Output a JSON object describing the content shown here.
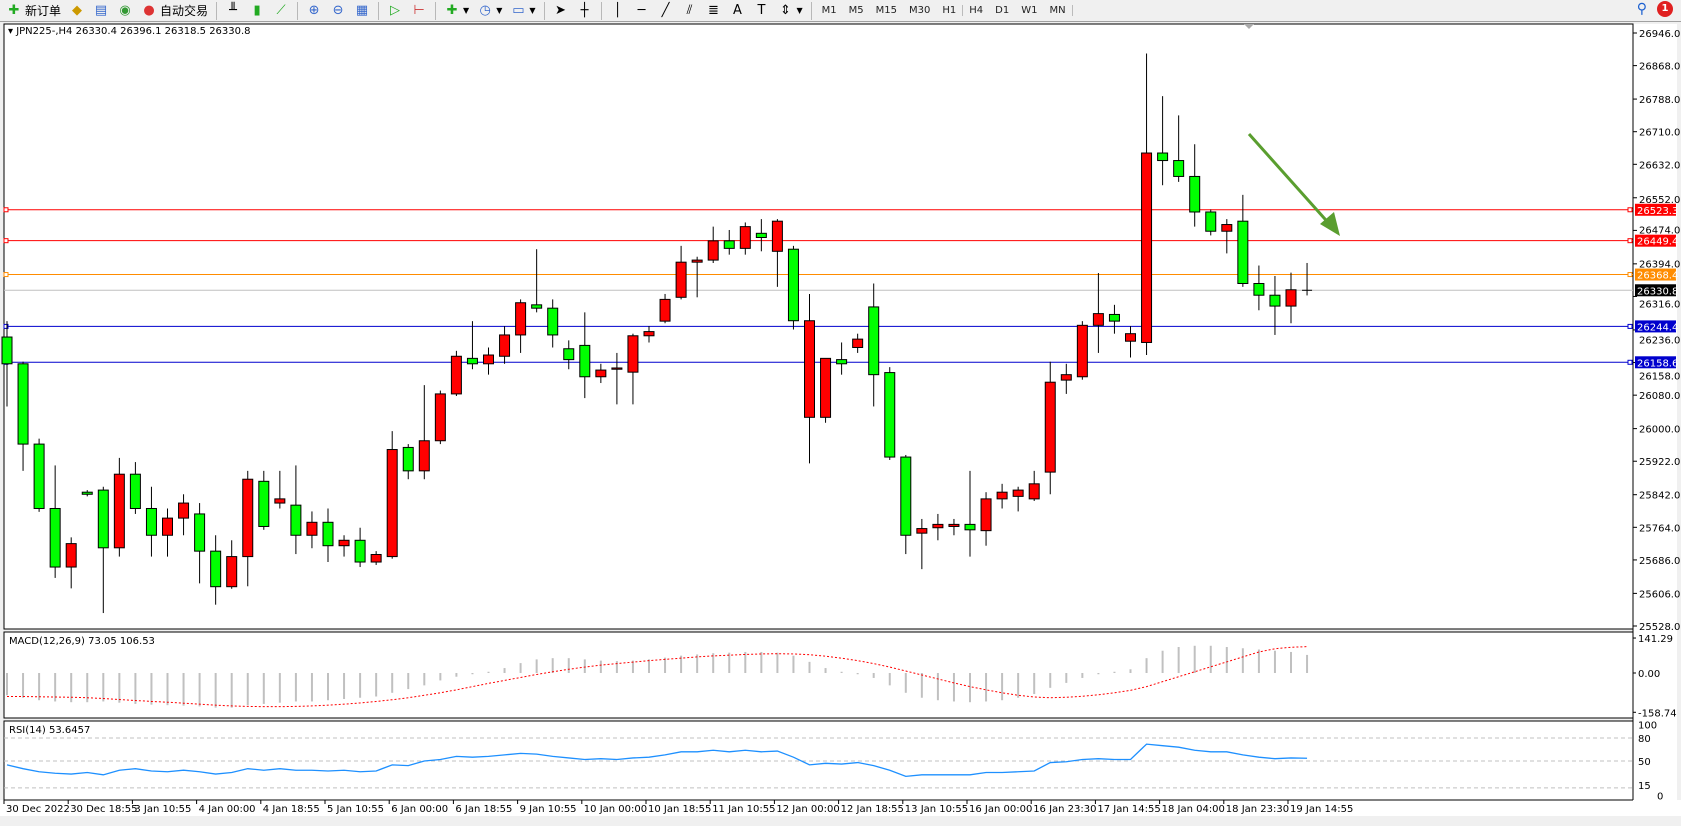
{
  "toolbar": {
    "new_order": "新订单",
    "auto_trading": "自动交易",
    "timeframes": [
      "M1",
      "M5",
      "M15",
      "M30",
      "H1",
      "H4",
      "D1",
      "W1",
      "MN"
    ],
    "icons": [
      "new-order-icon",
      "market-watch-icon",
      "navigator-icon",
      "signals-icon",
      "auto-trading-icon",
      "bar-chart-icon",
      "candlestick-icon",
      "line-chart-icon",
      "zoom-in-icon",
      "zoom-out-icon",
      "tile-windows-icon",
      "auto-scroll-icon",
      "chart-shift-icon",
      "indicators-icon",
      "periods-icon",
      "templates-icon",
      "cursor-icon",
      "crosshair-icon",
      "vertical-line-icon",
      "horizontal-line-icon",
      "trendline-icon",
      "equidistant-channel-icon",
      "fibonacci-icon",
      "text-icon",
      "text-label-icon",
      "arrows-icon"
    ],
    "notification_count": "1"
  },
  "chart": {
    "title": "JPN225-,H4  26330.4 26396.1 26318.5 26330.8",
    "colors": {
      "bull": "#ff0000",
      "bear": "#00ff00",
      "arrow": "#5a9e2f",
      "macd_hist": "#c0c0c0",
      "macd_signal": "#ff0000",
      "rsi": "#1e90ff"
    },
    "price_ticks": [
      "26946.0",
      "26868.0",
      "26788.0",
      "26710.0",
      "26632.0",
      "26552.0",
      "26474.0",
      "26394.0",
      "26316.0",
      "26236.0",
      "26158.0",
      "26080.0",
      "26000.0",
      "25922.0",
      "25842.0",
      "25764.0",
      "25686.0",
      "25606.0",
      "25528.0"
    ],
    "levels": [
      {
        "price": "26523.3",
        "color": "#ff0000"
      },
      {
        "price": "26449.4",
        "color": "#ff0000"
      },
      {
        "price": "26368.4",
        "color": "#ff8c00"
      },
      {
        "price": "26330.8",
        "color": "#c0c0c0",
        "label_bg": "#000000"
      },
      {
        "price": "26244.4",
        "color": "#0000cd"
      },
      {
        "price": "26158.6",
        "color": "#0000cd"
      }
    ],
    "time_labels": [
      "30 Dec 2022",
      "30 Dec 18:55",
      "3 Jan 10:55",
      "4 Jan 00:00",
      "4 Jan 18:55",
      "5 Jan 10:55",
      "6 Jan 00:00",
      "6 Jan 18:55",
      "9 Jan 10:55",
      "10 Jan 00:00",
      "10 Jan 18:55",
      "11 Jan 10:55",
      "12 Jan 00:00",
      "12 Jan 18:55",
      "13 Jan 10:55",
      "16 Jan 00:00",
      "16 Jan 23:30",
      "17 Jan 14:55",
      "18 Jan 04:00",
      "18 Jan 23:30",
      "19 Jan 14:55"
    ],
    "ohlc": [
      [
        26219,
        26257,
        26053,
        26155
      ],
      [
        26155,
        26160,
        25899,
        25963
      ],
      [
        25963,
        25976,
        25801,
        25809
      ],
      [
        25809,
        25912,
        25643,
        25669
      ],
      [
        25669,
        25740,
        25618,
        25725
      ],
      [
        25848,
        25853,
        25838,
        25843
      ],
      [
        25853,
        25861,
        25559,
        25715
      ],
      [
        25715,
        25930,
        25694,
        25891
      ],
      [
        25891,
        25920,
        25796,
        25809
      ],
      [
        25809,
        25861,
        25694,
        25745
      ],
      [
        25745,
        25809,
        25694,
        25786
      ],
      [
        25786,
        25843,
        25745,
        25822
      ],
      [
        25796,
        25822,
        25630,
        25707
      ],
      [
        25707,
        25745,
        25579,
        25622
      ],
      [
        25622,
        25733,
        25617,
        25694
      ],
      [
        25694,
        25899,
        25623,
        25879
      ],
      [
        25874,
        25899,
        25758,
        25766
      ],
      [
        25822,
        25899,
        25809,
        25832
      ],
      [
        25817,
        25912,
        25700,
        25745
      ],
      [
        25745,
        25802,
        25714,
        25776
      ],
      [
        25776,
        25809,
        25681,
        25720
      ],
      [
        25720,
        25745,
        25694,
        25733
      ],
      [
        25733,
        25763,
        25669,
        25681
      ],
      [
        25681,
        25707,
        25674,
        25699
      ],
      [
        25694,
        25994,
        25689,
        25950
      ],
      [
        25955,
        25963,
        25879,
        25899
      ],
      [
        25899,
        26104,
        25879,
        25971
      ],
      [
        25971,
        26091,
        25963,
        26083
      ],
      [
        26083,
        26186,
        26078,
        26173
      ],
      [
        26168,
        26257,
        26142,
        26155
      ],
      [
        26155,
        26194,
        26129,
        26176
      ],
      [
        26173,
        26245,
        26155,
        26224
      ],
      [
        26224,
        26309,
        26181,
        26301
      ],
      [
        26296,
        26429,
        26278,
        26288
      ],
      [
        26288,
        26309,
        26194,
        26224
      ],
      [
        26191,
        26211,
        26142,
        26165
      ],
      [
        26199,
        26278,
        26073,
        26124
      ],
      [
        26124,
        26155,
        26109,
        26140
      ],
      [
        26142,
        26181,
        26058,
        26145
      ],
      [
        26135,
        26227,
        26058,
        26222
      ],
      [
        26222,
        26245,
        26206,
        26232
      ],
      [
        26257,
        26322,
        26252,
        26309
      ],
      [
        26314,
        26437,
        26309,
        26398
      ],
      [
        26398,
        26411,
        26314,
        26403
      ],
      [
        26403,
        26483,
        26396,
        26449
      ],
      [
        26449,
        26475,
        26416,
        26431
      ],
      [
        26431,
        26493,
        26416,
        26483
      ],
      [
        26467,
        26501,
        26424,
        26457
      ],
      [
        26424,
        26501,
        26339,
        26496
      ],
      [
        26429,
        26437,
        26237,
        26258
      ],
      [
        26027,
        26322,
        25917,
        26258
      ],
      [
        26027,
        26168,
        26014,
        26168
      ],
      [
        26165,
        26206,
        26129,
        26155
      ],
      [
        26194,
        26227,
        26181,
        26214
      ],
      [
        26291,
        26347,
        26053,
        26129
      ],
      [
        26134,
        26147,
        25925,
        25932
      ],
      [
        25932,
        25937,
        25700,
        25745
      ],
      [
        25750,
        25784,
        25664,
        25761
      ],
      [
        25763,
        25796,
        25733,
        25771
      ],
      [
        25766,
        25784,
        25745,
        25771
      ],
      [
        25771,
        25899,
        25694,
        25758
      ],
      [
        25756,
        25848,
        25720,
        25832
      ],
      [
        25832,
        25868,
        25809,
        25848
      ],
      [
        25838,
        25861,
        25802,
        25853
      ],
      [
        25832,
        25899,
        25827,
        25868
      ],
      [
        25896,
        26160,
        25843,
        26111
      ],
      [
        26116,
        26155,
        26083,
        26129
      ],
      [
        26124,
        26257,
        26117,
        26247
      ],
      [
        26247,
        26372,
        26181,
        26275
      ],
      [
        26273,
        26296,
        26227,
        26257
      ],
      [
        26209,
        26245,
        26170,
        26227
      ],
      [
        26206,
        26897,
        26176,
        26659
      ],
      [
        26659,
        26795,
        26582,
        26641
      ],
      [
        26641,
        26749,
        26590,
        26603
      ],
      [
        26603,
        26680,
        26483,
        26518
      ],
      [
        26518,
        26524,
        26462,
        26472
      ],
      [
        26472,
        26501,
        26419,
        26488
      ],
      [
        26496,
        26559,
        26339,
        26347
      ],
      [
        26347,
        26390,
        26283,
        26319
      ],
      [
        26319,
        26365,
        26224,
        26293
      ],
      [
        26293,
        26373,
        26252,
        26332
      ],
      [
        26330.4,
        26396.1,
        26318.5,
        26330.8
      ]
    ]
  },
  "macd": {
    "label": "MACD(12,26,9) 73.05 106.53",
    "ticks": [
      "141.29",
      "0.00",
      "-158.74"
    ],
    "histogram": [
      -90,
      -100,
      -110,
      -115,
      -118,
      -118,
      -115,
      -120,
      -125,
      -128,
      -130,
      -132,
      -135,
      -140,
      -140,
      -130,
      -125,
      -120,
      -115,
      -115,
      -110,
      -105,
      -100,
      -95,
      -80,
      -65,
      -50,
      -30,
      -15,
      -5,
      5,
      20,
      40,
      55,
      60,
      60,
      55,
      50,
      48,
      50,
      55,
      62,
      70,
      75,
      80,
      82,
      85,
      85,
      82,
      70,
      45,
      20,
      5,
      -5,
      -20,
      -50,
      -80,
      -100,
      -110,
      -115,
      -118,
      -115,
      -110,
      -100,
      -85,
      -60,
      -40,
      -20,
      -5,
      5,
      15,
      60,
      90,
      105,
      110,
      110,
      105,
      100,
      95,
      90,
      85,
      73.05
    ],
    "signal": [
      -95,
      -95,
      -96,
      -97,
      -98,
      -100,
      -103,
      -107,
      -111,
      -115,
      -118,
      -122,
      -126,
      -130,
      -133,
      -135,
      -136,
      -136,
      -135,
      -133,
      -130,
      -126,
      -121,
      -115,
      -108,
      -100,
      -90,
      -80,
      -68,
      -55,
      -42,
      -30,
      -18,
      -6,
      5,
      15,
      24,
      32,
      38,
      44,
      50,
      55,
      60,
      65,
      69,
      72,
      75,
      77,
      78,
      77,
      74,
      68,
      60,
      50,
      38,
      24,
      8,
      -8,
      -24,
      -40,
      -55,
      -68,
      -80,
      -90,
      -97,
      -100,
      -98,
      -94,
      -88,
      -80,
      -70,
      -55,
      -35,
      -15,
      5,
      25,
      45,
      65,
      85,
      98,
      104,
      106.53
    ]
  },
  "rsi": {
    "label": "RSI(14) 53.6457",
    "ticks": [
      "100",
      "80",
      "50",
      "15",
      "0"
    ],
    "values": [
      45,
      40,
      36,
      34,
      33,
      35,
      32,
      38,
      40,
      37,
      36,
      38,
      36,
      33,
      35,
      40,
      38,
      40,
      38,
      38,
      37,
      38,
      36,
      37,
      45,
      44,
      50,
      52,
      56,
      55,
      56,
      58,
      60,
      59,
      56,
      54,
      52,
      53,
      52,
      54,
      55,
      58,
      62,
      62,
      64,
      62,
      64,
      62,
      63,
      55,
      45,
      47,
      46,
      48,
      44,
      38,
      30,
      32,
      32,
      32,
      32,
      35,
      35,
      36,
      37,
      48,
      49,
      52,
      53,
      52,
      52,
      72,
      70,
      68,
      64,
      62,
      62,
      58,
      55,
      53,
      54,
      53.6457
    ]
  }
}
